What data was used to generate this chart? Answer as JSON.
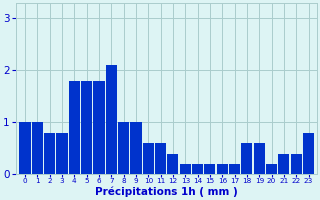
{
  "hours": [
    0,
    1,
    2,
    3,
    4,
    5,
    6,
    7,
    8,
    9,
    10,
    11,
    12,
    13,
    14,
    15,
    16,
    17,
    18,
    19,
    20,
    21,
    22,
    23
  ],
  "values": [
    1.0,
    1.0,
    0.8,
    0.8,
    1.8,
    1.8,
    1.8,
    2.1,
    1.0,
    1.0,
    0.6,
    0.6,
    0.4,
    0.2,
    0.2,
    0.2,
    0.2,
    0.2,
    0.6,
    0.6,
    0.2,
    0.4,
    0.4,
    0.8
  ],
  "bar_color": "#0033cc",
  "bg_color": "#ddf4f4",
  "grid_color": "#aacccc",
  "xlabel": "Précipitations 1h ( mm )",
  "xlabel_color": "#0000cc",
  "tick_color": "#0000cc",
  "ylim": [
    0,
    3.3
  ],
  "yticks": [
    0,
    1,
    2,
    3
  ]
}
